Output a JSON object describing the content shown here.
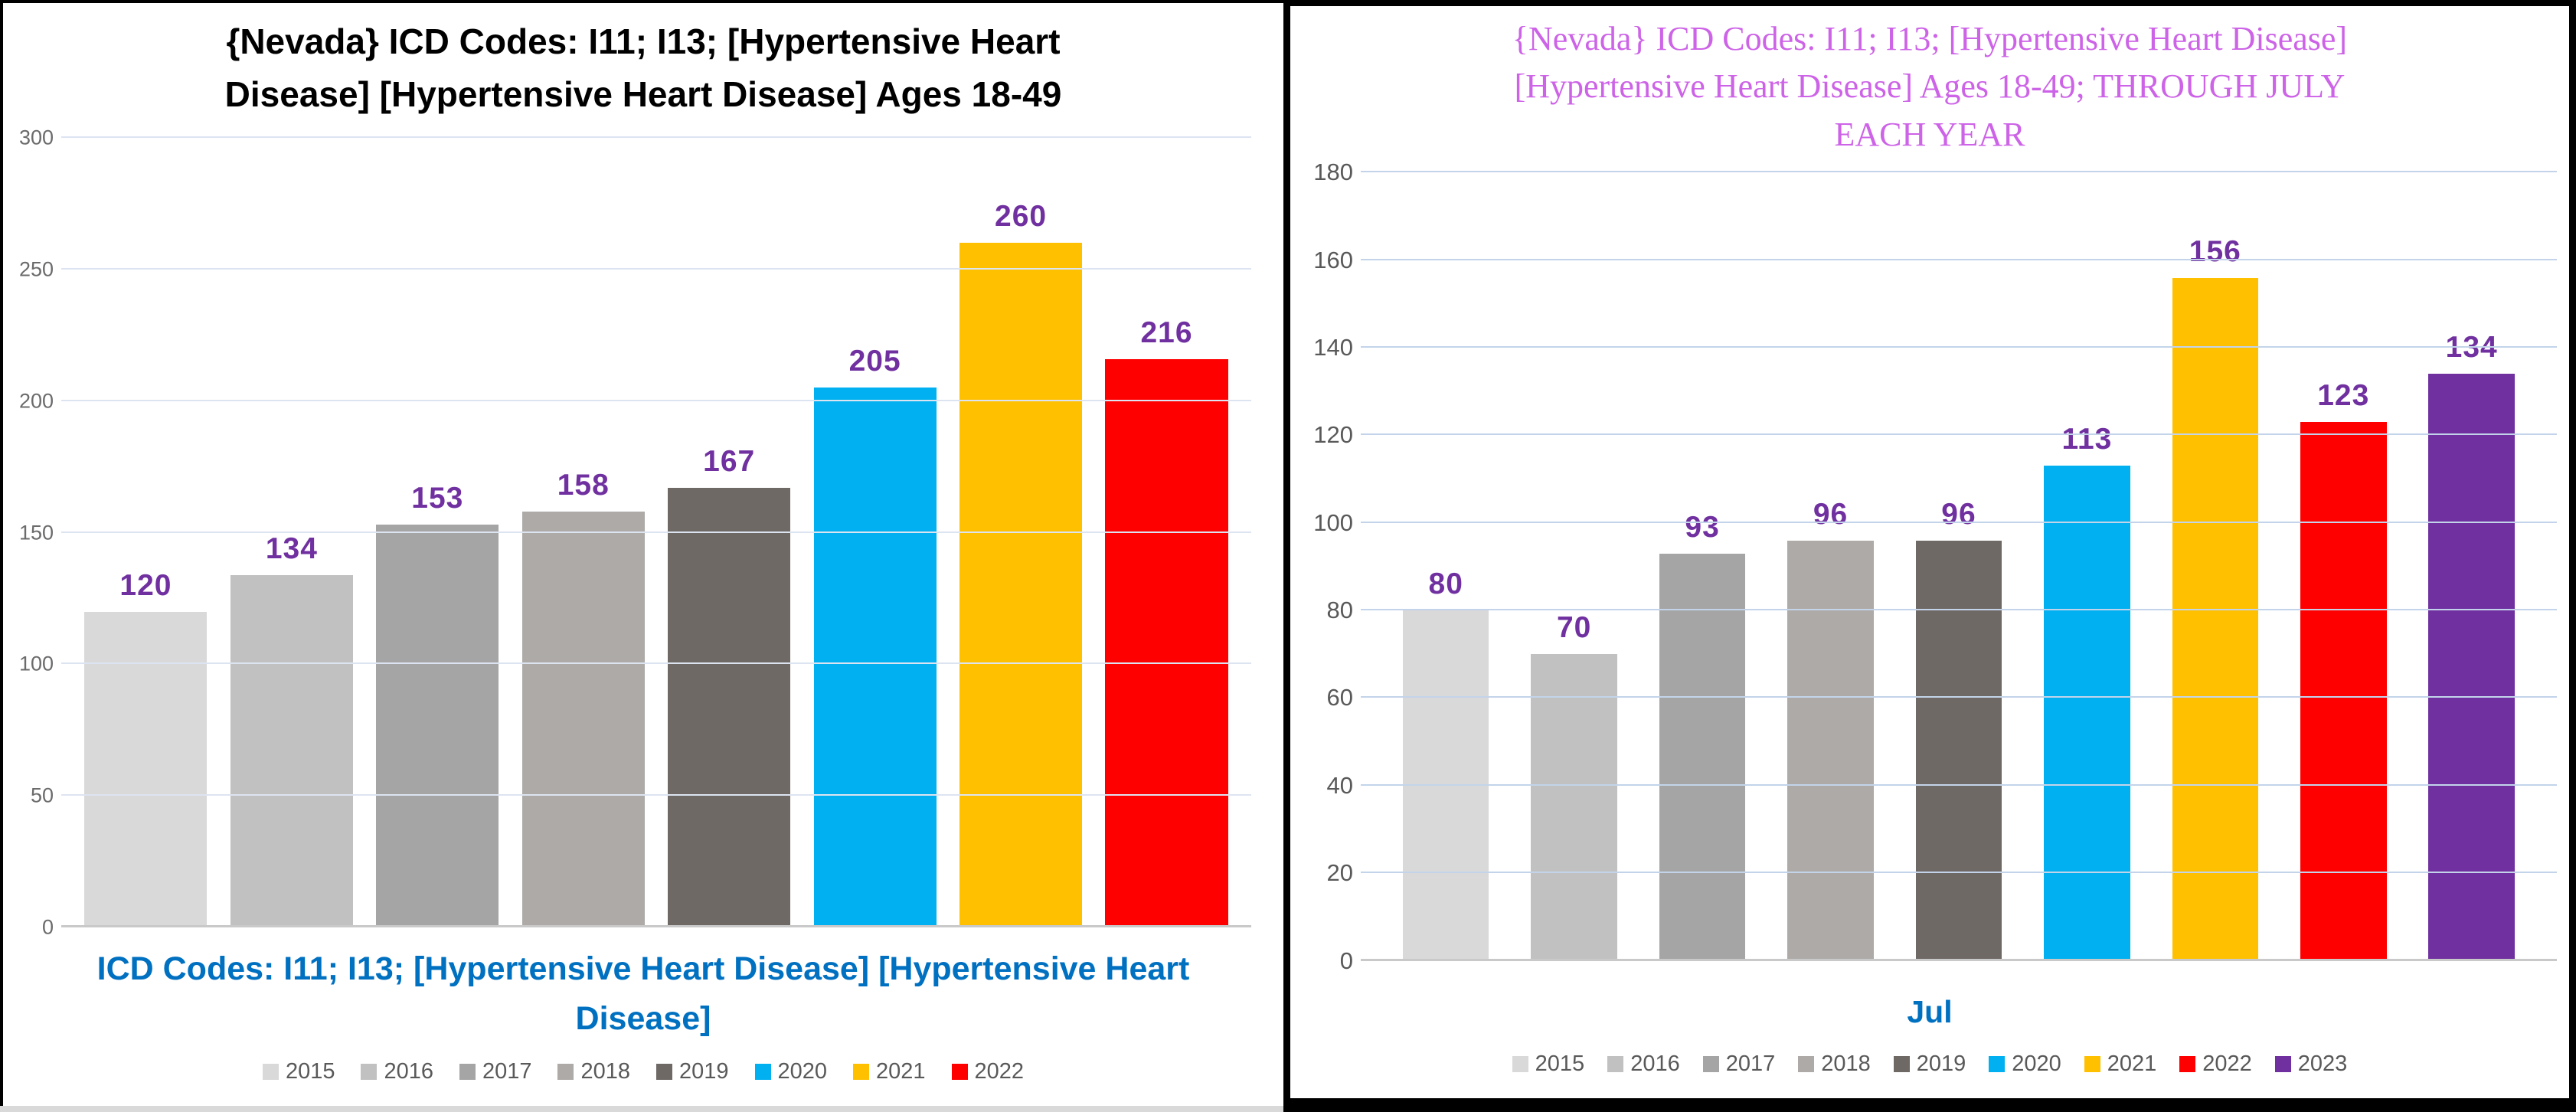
{
  "chart_data": [
    {
      "type": "bar",
      "panel": "left",
      "title": "{Nevada}  ICD Codes: I11; I13;  [Hypertensive Heart Disease]  [Hypertensive Heart Disease] Ages 18-49",
      "title_lines": [
        "{Nevada}  ICD Codes: I11; I13;  [Hypertensive Heart",
        "Disease]  [Hypertensive Heart Disease] Ages 18-49"
      ],
      "title_color": "#000000",
      "categories": [
        "2015",
        "2016",
        "2017",
        "2018",
        "2019",
        "2020",
        "2021",
        "2022"
      ],
      "values": [
        120,
        134,
        153,
        158,
        167,
        205,
        260,
        216
      ],
      "bar_colors": [
        "#D9D9D9",
        "#C1C1C1",
        "#A5A5A5",
        "#AEAAA7",
        "#6E6965",
        "#00B0F0",
        "#FFC000",
        "#FF0000"
      ],
      "data_label_color": "#7030A0",
      "xlabel": "ICD Codes: I11; I13;  [Hypertensive Heart Disease]  [Hypertensive Heart Disease]",
      "xlabel_lines": [
        "ICD Codes: I11; I13;  [Hypertensive Heart Disease]  [Hypertensive Heart",
        "Disease]"
      ],
      "xlabel_color": "#0070C0",
      "ylabel": "",
      "ylim": [
        0,
        300
      ],
      "yticks": [
        0,
        50,
        100,
        150,
        200,
        250,
        300
      ],
      "grid": true,
      "legend_position": "bottom"
    },
    {
      "type": "bar",
      "panel": "right",
      "title": "{Nevada}  ICD Codes: I11; I13;  [Hypertensive Heart Disease] [Hypertensive Heart Disease] Ages 18-49; THROUGH JULY EACH YEAR",
      "title_lines": [
        "{Nevada}  ICD Codes: I11; I13;  [Hypertensive Heart Disease]",
        "[Hypertensive Heart Disease] Ages 18-49; THROUGH JULY",
        "EACH YEAR"
      ],
      "title_color": "#CD63E7",
      "categories": [
        "2015",
        "2016",
        "2017",
        "2018",
        "2019",
        "2020",
        "2021",
        "2022",
        "2023"
      ],
      "values": [
        80,
        70,
        93,
        96,
        96,
        113,
        156,
        123,
        134
      ],
      "bar_colors": [
        "#D9D9D9",
        "#C1C1C1",
        "#A5A5A5",
        "#AEAAA7",
        "#6E6965",
        "#00B0F0",
        "#FFC000",
        "#FF0000",
        "#7030A0"
      ],
      "data_label_color": "#7030A0",
      "xlabel": "Jul",
      "xlabel_lines": [
        "Jul"
      ],
      "xlabel_color": "#0070C0",
      "ylabel": "",
      "ylim": [
        0,
        180
      ],
      "yticks": [
        0,
        20,
        40,
        60,
        80,
        100,
        120,
        140,
        160,
        180
      ],
      "grid": true,
      "legend_position": "bottom"
    }
  ]
}
